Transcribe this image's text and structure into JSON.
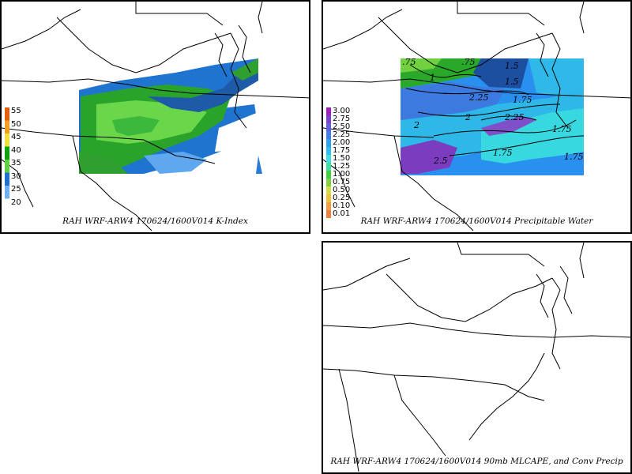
{
  "panels": [
    {
      "id": "kindex",
      "caption": "RAH WRF-ARW4 170624/1600V014  K-Index",
      "legend": [
        "55",
        "50",
        "45",
        "40",
        "35",
        "30",
        "25",
        "20"
      ],
      "legend_colors": [
        "#e06010",
        "#f0a020",
        "#f0e040",
        "#10a010",
        "#60d040",
        "#2070d0",
        "#70b0f0",
        "#ffffff"
      ]
    },
    {
      "id": "pwat",
      "caption": "RAH WRF-ARW4 170624/1600V014  Precipitable Water",
      "legend": [
        "3.00",
        "2.75",
        "2.50",
        "2.25",
        "2.00",
        "1.75",
        "1.50",
        "1.25",
        "1.00",
        "0.75",
        "0.50",
        "0.25",
        "0.10",
        "0.01"
      ],
      "legend_colors": [
        "#a020c0",
        "#8040d0",
        "#6060e0",
        "#4080f0",
        "#30a0f0",
        "#30c0f0",
        "#40e0e0",
        "#40e0a0",
        "#40d040",
        "#80d040",
        "#d0e040",
        "#f0c040",
        "#f0a040",
        "#f08040"
      ],
      "contour_labels": [
        ".75",
        "1",
        "1.5",
        "1.75",
        "2",
        "2.25",
        "2.5",
        ".75",
        "1.75",
        "1.5",
        "2",
        "2.25",
        "1.75",
        "1.75"
      ]
    },
    {
      "id": "mlcape",
      "caption": "RAH WRF-ARW4 170624/1600V014  90mb MLCAPE, and Conv Precip"
    }
  ]
}
